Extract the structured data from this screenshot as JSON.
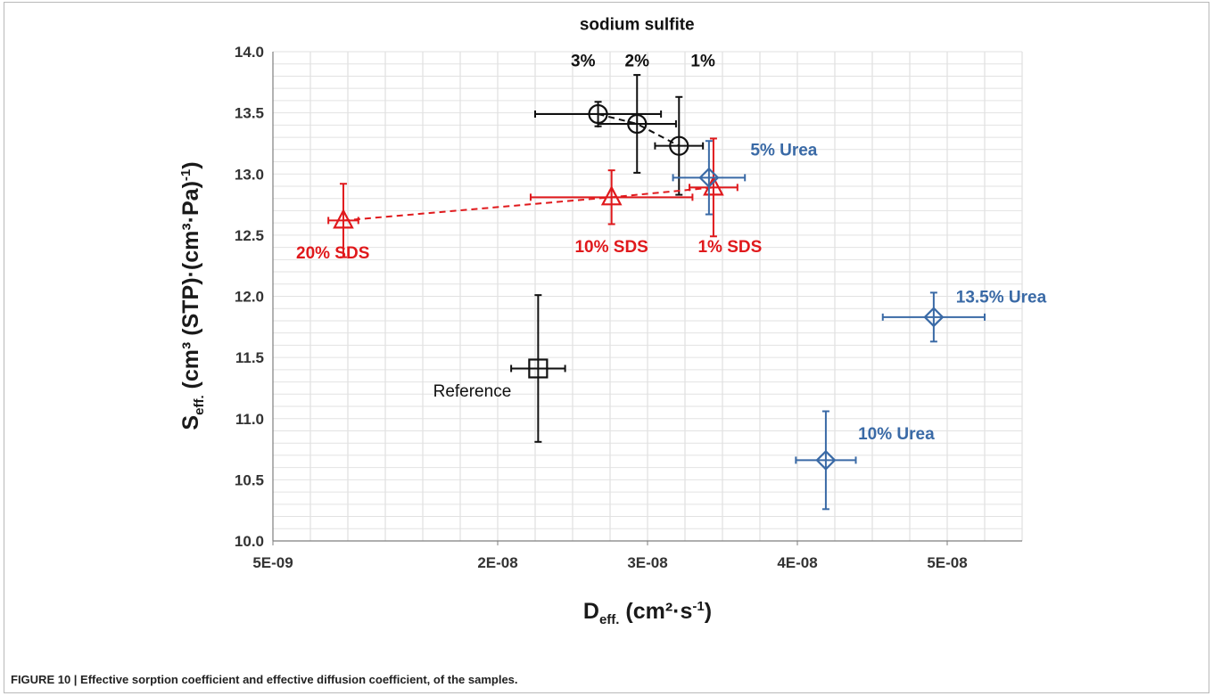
{
  "caption": "FIGURE 10 | Effective sorption coefficient and effective diffusion coefficient, of the samples.",
  "chart_data": {
    "type": "scatter",
    "xlabel": {
      "main": "D",
      "sub": "eff.",
      "rest": " (cm²·s",
      "sup": "-1",
      "end": ")"
    },
    "ylabel": {
      "main": "S",
      "sub": "eff.",
      "rest": " (cm³ (STP)·(cm³·Pa)",
      "sup": "-1",
      "end": ")"
    },
    "xlim": [
      5e-09,
      5.5e-08
    ],
    "ylim": [
      10.0,
      14.0
    ],
    "x_ticks": [
      {
        "value": 5e-09,
        "label": "5E-09"
      },
      {
        "value": 2e-08,
        "label": "2E-08"
      },
      {
        "value": 3e-08,
        "label": "3E-08"
      },
      {
        "value": 4e-08,
        "label": "4E-08"
      },
      {
        "value": 5e-08,
        "label": "5E-08"
      }
    ],
    "y_ticks": [
      {
        "value": 10.0,
        "label": "10.0"
      },
      {
        "value": 10.5,
        "label": "10.5"
      },
      {
        "value": 11.0,
        "label": "11.0"
      },
      {
        "value": 11.5,
        "label": "11.5"
      },
      {
        "value": 12.0,
        "label": "12.0"
      },
      {
        "value": 12.5,
        "label": "12.5"
      },
      {
        "value": 13.0,
        "label": "13.0"
      },
      {
        "value": 13.5,
        "label": "13.5"
      },
      {
        "value": 14.0,
        "label": "14.0"
      }
    ],
    "grid": true,
    "series": [
      {
        "group": "sodium-sulfite",
        "color": "#111111",
        "marker": "circle",
        "dashed_line": true,
        "points": [
          {
            "x": 2.67e-08,
            "y": 13.49,
            "xerr": 4.2e-09,
            "yerr": 0.1,
            "label": "3%"
          },
          {
            "x": 2.93e-08,
            "y": 13.41,
            "xerr": 2.6e-09,
            "yerr": 0.4,
            "label": "2%"
          },
          {
            "x": 3.21e-08,
            "y": 13.23,
            "xerr": 1.6e-09,
            "yerr": 0.4,
            "label": "1%"
          }
        ]
      },
      {
        "group": "sds",
        "color": "#e0191c",
        "marker": "triangle",
        "dashed_line": true,
        "points": [
          {
            "x": 9.7e-09,
            "y": 12.62,
            "xerr": 1e-09,
            "yerr": 0.3,
            "label": "20% SDS"
          },
          {
            "x": 2.76e-08,
            "y": 12.81,
            "xerr": 5.4e-09,
            "yerr": 0.22,
            "label": "10% SDS"
          },
          {
            "x": 3.44e-08,
            "y": 12.89,
            "xerr": 1.6e-09,
            "yerr": 0.4,
            "label": "1% SDS"
          }
        ]
      },
      {
        "group": "urea",
        "color": "#3a6aa6",
        "marker": "diamond",
        "dashed_line": false,
        "points": [
          {
            "x": 3.41e-08,
            "y": 12.97,
            "xerr": 2.4e-09,
            "yerr": 0.3,
            "label": "5% Urea"
          },
          {
            "x": 4.19e-08,
            "y": 10.66,
            "xerr": 2e-09,
            "yerr": 0.4,
            "label": "10% Urea"
          },
          {
            "x": 4.91e-08,
            "y": 11.83,
            "xerr": 3.4e-09,
            "yerr": 0.2,
            "label": "13.5% Urea"
          }
        ]
      },
      {
        "group": "reference",
        "color": "#111111",
        "marker": "square",
        "dashed_line": false,
        "points": [
          {
            "x": 2.27e-08,
            "y": 11.41,
            "xerr": 1.8e-09,
            "yerr": 0.6,
            "label": "Reference"
          }
        ]
      }
    ],
    "annotations": [
      {
        "text": "sodium sulfite",
        "x": 2.93e-08,
        "y": 14.18,
        "color": "#111111",
        "weight": "bold"
      },
      {
        "text": "3%",
        "x": 2.57e-08,
        "y": 13.88,
        "color": "#111111",
        "weight": "bold"
      },
      {
        "text": "2%",
        "x": 2.93e-08,
        "y": 13.88,
        "color": "#111111",
        "weight": "bold"
      },
      {
        "text": "1%",
        "x": 3.37e-08,
        "y": 13.88,
        "color": "#111111",
        "weight": "bold"
      },
      {
        "text": "5% Urea",
        "x": 3.91e-08,
        "y": 13.15,
        "color": "#3a6aa6",
        "weight": "bold"
      },
      {
        "text": "20% SDS",
        "x": 9e-09,
        "y": 12.31,
        "color": "#e0191c",
        "weight": "bold"
      },
      {
        "text": "10% SDS",
        "x": 2.76e-08,
        "y": 12.36,
        "color": "#e0191c",
        "weight": "bold"
      },
      {
        "text": "1% SDS",
        "x": 3.55e-08,
        "y": 12.36,
        "color": "#e0191c",
        "weight": "bold"
      },
      {
        "text": "13.5% Urea",
        "x": 5.36e-08,
        "y": 11.95,
        "color": "#3a6aa6",
        "weight": "bold"
      },
      {
        "text": "Reference",
        "x": 1.83e-08,
        "y": 11.18,
        "color": "#111111",
        "weight": "normal"
      },
      {
        "text": "10% Urea",
        "x": 4.66e-08,
        "y": 10.83,
        "color": "#3a6aa6",
        "weight": "bold"
      }
    ]
  }
}
